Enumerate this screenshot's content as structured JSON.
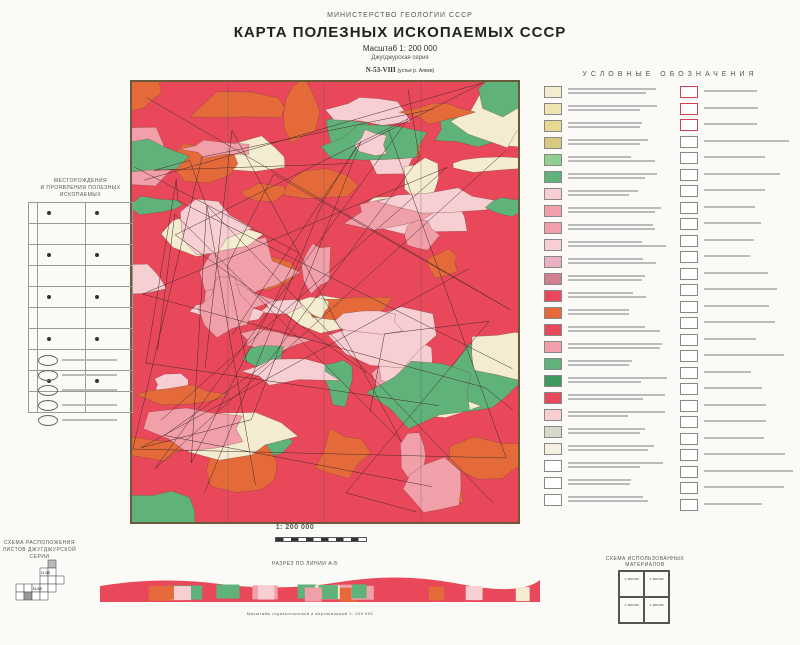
{
  "header": {
    "ministry": "МИНИСТЕРСТВО ГЕОЛОГИИ СССР",
    "title": "КАРТА ПОЛЕЗНЫХ ИСКОПАЕМЫХ СССР",
    "scale": "Масштаб 1: 200 000",
    "series": "Джугджурская серия",
    "sheet": "N-53-VIII",
    "sheet_note": "(устье р. Аянки)"
  },
  "legend": {
    "title": "УСЛОВНЫЕ ОБОЗНАЧЕНИЯ"
  },
  "deposits_index": {
    "title_line1": "МЕСТОРОЖДЕНИЯ",
    "title_line2": "И ПРОЯВЛЕНИЯ ПОЛЕЗНЫХ ИСКОПАЕМЫХ"
  },
  "bottom": {
    "scale_label": "1: 200 000",
    "section_title": "РАЗРЕЗ ПО ЛИНИИ А-Б",
    "section_scale": "Масштабы горизонтальный и вертикальный 1: 200 000",
    "sheets_scheme_title": "СХЕМА РАСПОЛОЖЕНИЯ ЛИСТОВ ДЖУГДЖУРСКОЙ СЕРИИ",
    "sheets": [
      "O-53",
      "N-53"
    ],
    "materials_title": "СХЕМА ИСПОЛЬЗОВАННЫХ МАТЕРИАЛОВ",
    "materials_boxes": [
      "1: 200 000",
      "1: 200 000",
      "1: 200 000",
      "1: 200 000"
    ]
  },
  "colors": {
    "granite_red": "#e8485a",
    "pink": "#f1a0aa",
    "light_pink": "#f7cfd2",
    "green": "#5fb37a",
    "alluvium": "#f3ecd0",
    "orange": "#e46a3a",
    "frame": "#6a5a3a"
  }
}
